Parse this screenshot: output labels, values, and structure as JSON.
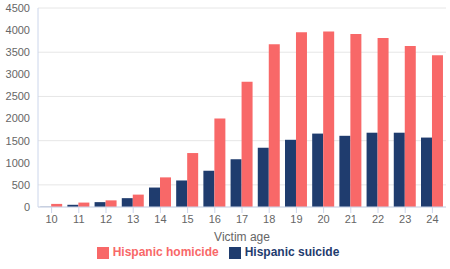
{
  "chart_data": {
    "type": "bar",
    "x_label": "Victim age",
    "categories": [
      10,
      11,
      12,
      13,
      14,
      15,
      16,
      17,
      18,
      19,
      20,
      21,
      22,
      23,
      24
    ],
    "series": [
      {
        "name": "Hispanic suicide",
        "color": "#1f3c6e",
        "values": [
          5,
          50,
          110,
          200,
          440,
          600,
          820,
          1080,
          1340,
          1520,
          1660,
          1610,
          1680,
          1680,
          1570
        ]
      },
      {
        "name": "Hispanic homicide",
        "color": "#f86868",
        "values": [
          70,
          100,
          150,
          280,
          670,
          1220,
          2000,
          2830,
          3680,
          3950,
          3970,
          3910,
          3820,
          3640,
          3430
        ]
      }
    ],
    "ylim": [
      0,
      4500
    ],
    "yticks": [
      0,
      500,
      1000,
      1500,
      2000,
      2500,
      3000,
      3500,
      4000,
      4500
    ],
    "grid": true,
    "legend": "bottom"
  }
}
